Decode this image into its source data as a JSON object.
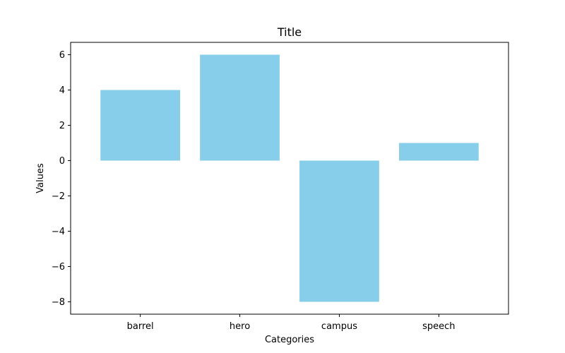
{
  "chart_data": {
    "type": "bar",
    "title": "Title",
    "xlabel": "Categories",
    "ylabel": "Values",
    "categories": [
      "barrel",
      "hero",
      "campus",
      "speech"
    ],
    "values": [
      4,
      6,
      -8,
      1
    ],
    "ylim": [
      -8.7,
      6.7
    ],
    "yticks": [
      -8,
      -6,
      -4,
      -2,
      0,
      2,
      4,
      6
    ],
    "ytick_labels": [
      "−8",
      "−6",
      "−4",
      "−2",
      "0",
      "2",
      "4",
      "6"
    ],
    "bar_color": "#87ceeb",
    "grid": false,
    "legend": false
  }
}
